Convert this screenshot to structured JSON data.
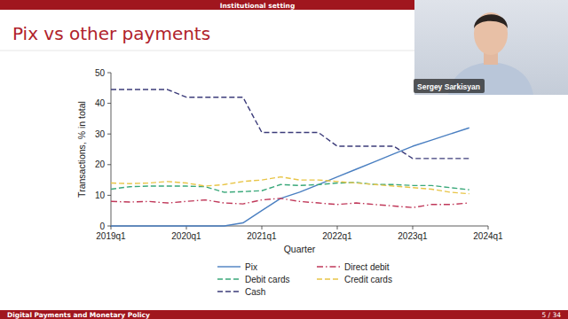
{
  "slide": {
    "section": "Institutional setting",
    "title": "Pix vs other payments",
    "footer": "Digital Payments and Monetary Policy",
    "page": "5 / 34"
  },
  "video": {
    "name": "Sergey Sarkisyan"
  },
  "chart_data": {
    "type": "line",
    "x_label": "Quarter",
    "y_label": "Transactions, % in total",
    "x": [
      2019,
      2019.25,
      2019.5,
      2019.75,
      2020,
      2020.25,
      2020.5,
      2020.75,
      2021,
      2021.25,
      2021.5,
      2021.75,
      2022,
      2022.25,
      2022.5,
      2022.75,
      2023,
      2023.25,
      2023.5,
      2023.75
    ],
    "xlim": [
      2019,
      2024
    ],
    "xticks": [
      {
        "value": 2019,
        "label": "2019q1"
      },
      {
        "value": 2020,
        "label": "2020q1"
      },
      {
        "value": 2021,
        "label": "2021q1"
      },
      {
        "value": 2022,
        "label": "2022q1"
      },
      {
        "value": 2023,
        "label": "2023q1"
      },
      {
        "value": 2024,
        "label": "2024q1"
      }
    ],
    "ylim": [
      0,
      50
    ],
    "yticks": [
      0,
      10,
      20,
      30,
      40,
      50
    ],
    "grid": false,
    "legend": "bottom",
    "series": [
      {
        "name": "Pix",
        "color": "#4a7fc1",
        "line_style": "solid",
        "values": [
          0,
          0,
          0,
          0,
          0,
          0,
          0,
          1,
          5,
          9,
          11,
          13.5,
          16,
          18.5,
          21,
          23.5,
          26,
          28,
          30,
          32
        ]
      },
      {
        "name": "Direct debit",
        "color": "#c0395a",
        "line_style": "dashdot",
        "values": [
          8,
          7.8,
          8,
          7.5,
          8,
          8.5,
          7.5,
          7.2,
          8.5,
          9,
          8,
          7.5,
          7,
          7.5,
          7,
          6.5,
          6,
          7,
          7,
          7.5
        ]
      },
      {
        "name": "Debit cards",
        "color": "#3aa87a",
        "line_style": "dashed",
        "values": [
          12,
          12.8,
          13,
          13,
          13,
          12.8,
          11,
          11.2,
          11.5,
          13.5,
          13.2,
          13.5,
          14,
          14.2,
          13.5,
          13.5,
          13.2,
          13.2,
          12.5,
          11.8
        ]
      },
      {
        "name": "Credit cards",
        "color": "#e8c547",
        "line_style": "dashed",
        "values": [
          14,
          13.8,
          14,
          14.5,
          14,
          13,
          13.5,
          14.5,
          15,
          16,
          15,
          15,
          14.5,
          14,
          13.5,
          13,
          12.5,
          12,
          11,
          10.5
        ]
      },
      {
        "name": "Cash",
        "color": "#3c3c7a",
        "line_style": "dashed",
        "values": [
          44.5,
          44.5,
          44.5,
          44.5,
          42,
          42,
          42,
          42,
          30.5,
          30.5,
          30.5,
          30.5,
          26,
          26,
          26,
          26,
          22,
          22,
          22,
          22
        ]
      }
    ]
  }
}
